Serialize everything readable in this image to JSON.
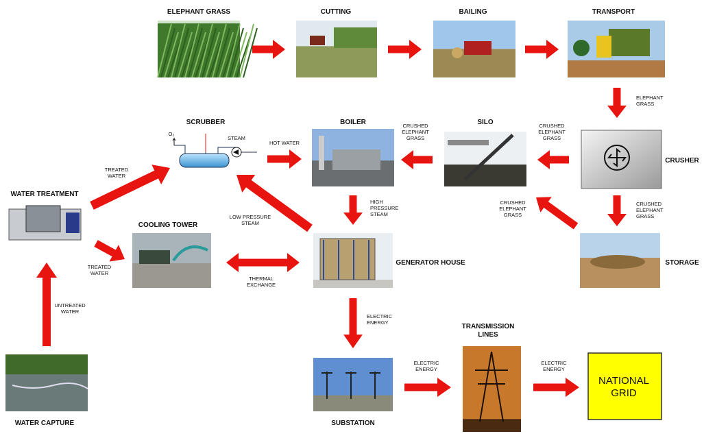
{
  "nodes": [
    {
      "label": [
        "ELEPHANT GRASS"
      ]
    },
    {
      "label": [
        "CUTTING"
      ]
    },
    {
      "label": [
        "BAILING"
      ]
    },
    {
      "label": [
        "TRANSPORT"
      ]
    },
    {
      "label": [
        "CRUSHER"
      ]
    },
    {
      "label": [
        "SILO"
      ]
    },
    {
      "label": [
        "BOILER"
      ]
    },
    {
      "label": [
        "SCRUBBER"
      ]
    },
    {
      "label": [
        "STORAGE"
      ]
    },
    {
      "label": [
        "GENERATOR HOUSE"
      ]
    },
    {
      "label": [
        "COOLING TOWER"
      ]
    },
    {
      "label": [
        "WATER TREATMENT"
      ]
    },
    {
      "label": [
        "WATER CAPTURE"
      ]
    },
    {
      "label": [
        "SUBSTATION"
      ]
    },
    {
      "label": [
        "TRANSMISSION",
        "LINES"
      ]
    },
    {
      "label": [
        "NATIONAL",
        "GRID"
      ]
    }
  ],
  "edges": [
    {
      "label": [
        "ELEPHANT",
        "GRASS"
      ]
    },
    {
      "label": [
        "CRUSHED",
        "ELEPHANT",
        "GRASS"
      ]
    },
    {
      "label": [
        "CRUSHED",
        "ELEPHANT",
        "GRASS"
      ]
    },
    {
      "label": [
        "CRUSHED",
        "ELEPHANT",
        "GRASS"
      ]
    },
    {
      "label": [
        "CRUSHED",
        "ELEPHANT",
        "GRASS"
      ]
    },
    {
      "label": [
        "STEAM"
      ]
    },
    {
      "label": [
        "HOT WATER"
      ]
    },
    {
      "label": [
        "HIGH",
        "PRESSURE",
        "STEAM"
      ]
    },
    {
      "label": [
        "LOW PRESSURE",
        "STEAM"
      ]
    },
    {
      "label": [
        "THERMAL",
        "EXCHANGE"
      ]
    },
    {
      "label": [
        "TREATED",
        "WATER"
      ]
    },
    {
      "label": [
        "TREATED",
        "WATER"
      ]
    },
    {
      "label": [
        "UNTREATED",
        "WATER"
      ]
    },
    {
      "label": [
        "ELECTRIC",
        "ENERGY"
      ]
    },
    {
      "label": [
        "ELECTRIC",
        "ENERGY"
      ]
    },
    {
      "label": [
        "ELECTRIC",
        "ENERGY"
      ]
    },
    {
      "label": [
        "O₂"
      ]
    }
  ]
}
